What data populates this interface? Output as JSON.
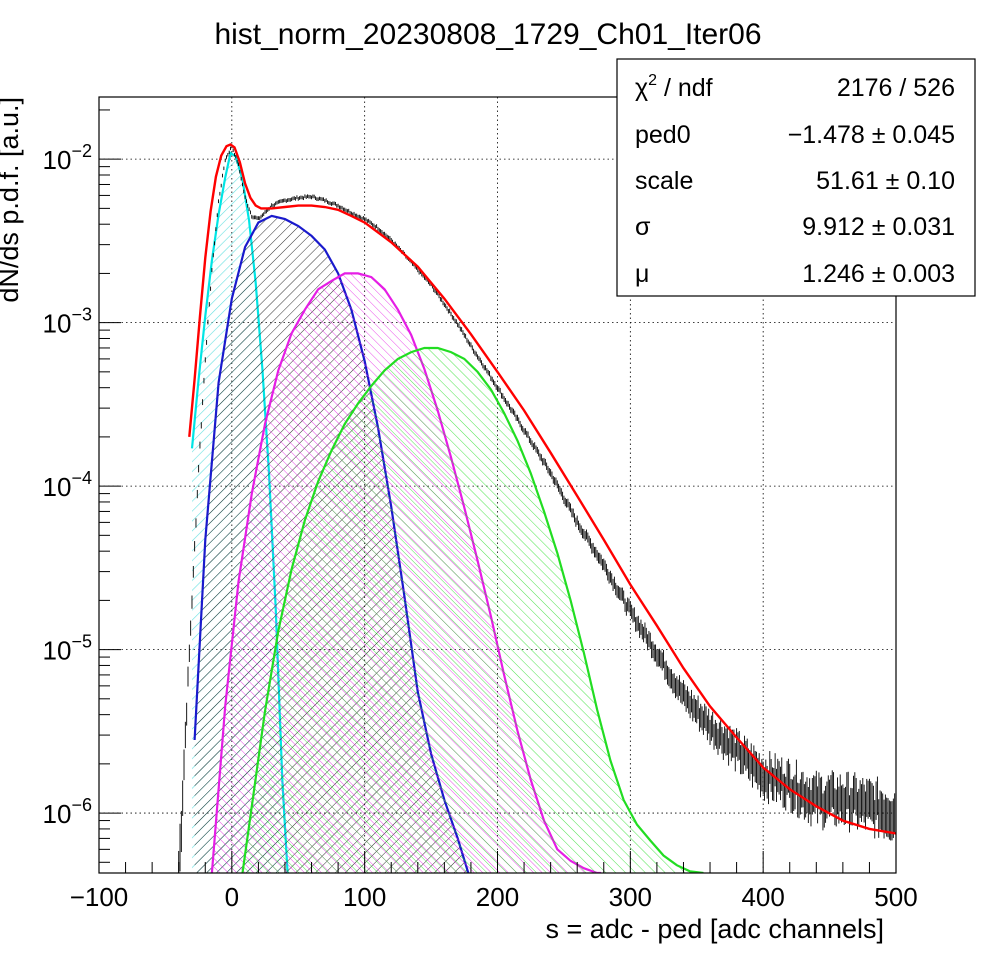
{
  "chart_data": {
    "type": "line",
    "title": "hist_norm_20230808_1729_Ch01_Iter06",
    "xlabel": "s = adc - ped [adc channels]",
    "ylabel": "dN/ds p.d.f. [a.u.]",
    "xlim": [
      -100,
      500
    ],
    "ylim": [
      4.3e-07,
      0.024
    ],
    "yscale": "log",
    "grid": true,
    "x_ticks": [
      "−100",
      "0",
      "100",
      "200",
      "300",
      "400",
      "500"
    ],
    "x_tick_values": [
      -100,
      0,
      100,
      200,
      300,
      400,
      500
    ],
    "y_ticks": [
      {
        "base": "10",
        "exp": "−2",
        "value": 0.01
      },
      {
        "base": "10",
        "exp": "−3",
        "value": 0.001
      },
      {
        "base": "10",
        "exp": "−4",
        "value": 0.0001
      },
      {
        "base": "10",
        "exp": "−5",
        "value": 1e-05
      },
      {
        "base": "10",
        "exp": "−6",
        "value": 1e-06
      }
    ],
    "stats_box": {
      "position": "top-right",
      "rows": [
        {
          "label": "χ",
          "label_sup": "2",
          "label_suffix": " / ndf",
          "value": "2176 / 526"
        },
        {
          "label": "ped0",
          "label_sup": "",
          "label_suffix": "",
          "value": "−1.478 ± 0.045"
        },
        {
          "label": "scale",
          "label_sup": "",
          "label_suffix": "",
          "value": "51.61 ± 0.10"
        },
        {
          "label": "σ",
          "label_sup": "",
          "label_suffix": "",
          "value": "9.912 ± 0.031"
        },
        {
          "label": "μ",
          "label_sup": "",
          "label_suffix": "",
          "value": "1.246 ± 0.003"
        }
      ]
    },
    "series": [
      {
        "kind": "data",
        "color": "#000000",
        "x": [
          -40,
          -35,
          -30,
          -25,
          -20,
          -15,
          -10,
          -5,
          0,
          5,
          10,
          15,
          20,
          25,
          30,
          40,
          50,
          60,
          70,
          80,
          90,
          100,
          110,
          120,
          130,
          140,
          150,
          160,
          170,
          180,
          190,
          200,
          220,
          240,
          260,
          280,
          300,
          320,
          340,
          360,
          380,
          400,
          420,
          440,
          460,
          480,
          500
        ],
        "y": [
          4e-07,
          3e-06,
          2e-05,
          0.00013,
          0.0006,
          0.0021,
          0.0055,
          0.0099,
          0.012,
          0.0092,
          0.0058,
          0.0045,
          0.0043,
          0.0047,
          0.0052,
          0.0056,
          0.0058,
          0.0059,
          0.0056,
          0.0052,
          0.0047,
          0.0043,
          0.0038,
          0.0032,
          0.0026,
          0.0021,
          0.0017,
          0.0013,
          0.00098,
          0.00072,
          0.00054,
          0.0004,
          0.00022,
          0.00012,
          6e-05,
          3.3e-05,
          1.7e-05,
          9.5e-06,
          5.2e-06,
          3.4e-06,
          2.4e-06,
          1.7e-06,
          1.5e-06,
          1.2e-06,
          1.2e-06,
          1.1e-06,
          1e-06
        ]
      },
      {
        "kind": "fit",
        "color": "#ff0000",
        "x": [
          -32,
          -28,
          -24,
          -20,
          -16,
          -12,
          -8,
          -4,
          -1,
          2,
          6,
          10,
          14,
          18,
          22,
          26,
          30,
          40,
          50,
          60,
          70,
          80,
          90,
          100,
          120,
          140,
          160,
          180,
          200,
          220,
          240,
          260,
          280,
          300,
          320,
          340,
          360,
          380,
          400,
          420,
          440,
          460,
          480,
          500
        ],
        "y": [
          0.0002,
          0.00045,
          0.0011,
          0.0025,
          0.0048,
          0.0078,
          0.0105,
          0.012,
          0.0123,
          0.0118,
          0.0096,
          0.0071,
          0.0058,
          0.0052,
          0.005,
          0.005,
          0.005,
          0.0051,
          0.0052,
          0.0052,
          0.0051,
          0.0049,
          0.0045,
          0.0041,
          0.0031,
          0.0022,
          0.0014,
          0.00085,
          0.0005,
          0.00029,
          0.00016,
          8.7e-05,
          4.7e-05,
          2.5e-05,
          1.4e-05,
          7.7e-06,
          4.5e-06,
          2.9e-06,
          1.9e-06,
          1.4e-06,
          1.1e-06,
          9e-07,
          8e-07,
          7.5e-07
        ]
      },
      {
        "kind": "component",
        "color": "#00e5e5",
        "fill": "#66e0e0",
        "x": [
          -30,
          -25,
          -20,
          -15,
          -10,
          -5,
          -1,
          3,
          8,
          13,
          18,
          23,
          28,
          33,
          38,
          42
        ],
        "y": [
          0.00017,
          0.00045,
          0.0011,
          0.0024,
          0.0046,
          0.0077,
          0.0109,
          0.0104,
          0.0075,
          0.0042,
          0.00175,
          0.00052,
          0.00012,
          1.8e-05,
          1.6e-06,
          4.3e-07
        ]
      },
      {
        "kind": "component",
        "color": "#1a1acc",
        "fill": "#1a1a1a",
        "x": [
          -28,
          -20,
          -10,
          0,
          10,
          20,
          30,
          40,
          50,
          60,
          70,
          80,
          90,
          100,
          110,
          120,
          130,
          140,
          150,
          160,
          170,
          178
        ],
        "y": [
          2.8e-06,
          4.7e-05,
          0.00043,
          0.0014,
          0.0029,
          0.0041,
          0.0045,
          0.0043,
          0.0039,
          0.0034,
          0.0028,
          0.002,
          0.0012,
          0.00058,
          0.00023,
          7.5e-05,
          2.1e-05,
          5.5e-06,
          2.3e-06,
          1.2e-06,
          7e-07,
          4.3e-07
        ]
      },
      {
        "kind": "component",
        "color": "#e51ee5",
        "fill": "#e51ee5",
        "x": [
          -15,
          -5,
          5,
          15,
          25,
          35,
          45,
          55,
          65,
          75,
          85,
          95,
          105,
          115,
          125,
          135,
          145,
          155,
          165,
          175,
          185,
          195,
          205,
          215,
          225,
          235,
          245,
          255,
          265,
          275,
          278
        ],
        "y": [
          4.3e-07,
          4.5e-06,
          2.6e-05,
          9e-05,
          0.00024,
          0.00051,
          0.00086,
          0.0012,
          0.0016,
          0.0018,
          0.002,
          0.002,
          0.0019,
          0.0016,
          0.0012,
          0.00084,
          0.00052,
          0.00029,
          0.00015,
          7.4e-05,
          3.5e-05,
          1.6e-05,
          7e-06,
          3.2e-06,
          1.6e-06,
          9e-07,
          6e-07,
          5.1e-07,
          4.6e-07,
          4.3e-07,
          4.3e-07
        ]
      },
      {
        "kind": "component",
        "color": "#22dd22",
        "fill": "#22dd22",
        "x": [
          8,
          15,
          25,
          35,
          45,
          55,
          65,
          75,
          85,
          95,
          105,
          115,
          125,
          135,
          145,
          155,
          165,
          175,
          185,
          195,
          205,
          215,
          225,
          235,
          245,
          255,
          265,
          275,
          285,
          295,
          305,
          315,
          325,
          335,
          345,
          355
        ],
        "y": [
          4.3e-07,
          1.1e-06,
          4.2e-06,
          1.3e-05,
          3.1e-05,
          6.2e-05,
          0.000107,
          0.000165,
          0.00024,
          0.00032,
          0.00041,
          0.00051,
          0.0006,
          0.00066,
          0.0007,
          0.0007,
          0.00066,
          0.0006,
          0.0005,
          0.00039,
          0.00028,
          0.00019,
          0.00012,
          7e-05,
          3.9e-05,
          2e-05,
          9.6e-06,
          4.3e-06,
          2.1e-06,
          1.2e-06,
          8.5e-07,
          6.8e-07,
          5.5e-07,
          4.8e-07,
          4.4e-07,
          4.3e-07
        ]
      }
    ]
  }
}
